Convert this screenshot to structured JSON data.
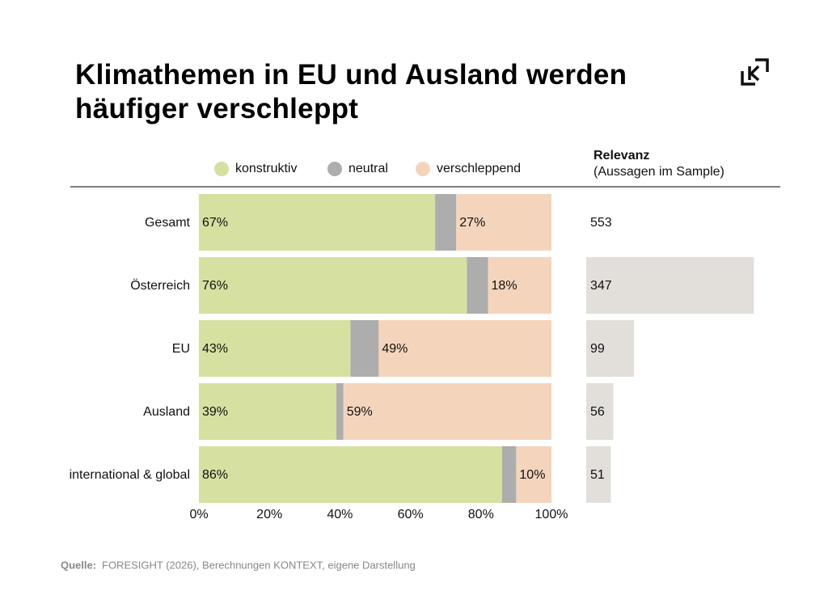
{
  "chart_data": [
    {
      "type": "stacked-bar",
      "title": "Klimathemen in EU und Ausland werden häufiger verschleppt",
      "categories": [
        "Gesamt",
        "Österreich",
        "EU",
        "Ausland",
        "international & global"
      ],
      "series": [
        {
          "name": "konstruktiv",
          "color": "#d6e0a0",
          "values": [
            67,
            76,
            43,
            39,
            86
          ],
          "value_labels": [
            "67%",
            "76%",
            "43%",
            "39%",
            "86%"
          ]
        },
        {
          "name": "neutral",
          "color": "#adadad",
          "values": [
            6,
            6,
            8,
            2,
            4
          ]
        },
        {
          "name": "verschleppend",
          "color": "#f4d5bc",
          "values": [
            27,
            18,
            49,
            59,
            10
          ],
          "value_labels": [
            "27%",
            "18%",
            "49%",
            "59%",
            "10%"
          ]
        }
      ],
      "xlim": [
        0,
        100
      ],
      "xticks": [
        {
          "value": 0,
          "label": "0%"
        },
        {
          "value": 20,
          "label": "20%"
        },
        {
          "value": 40,
          "label": "40%"
        },
        {
          "value": 60,
          "label": "60%"
        },
        {
          "value": 80,
          "label": "80%"
        },
        {
          "value": 100,
          "label": "100%"
        }
      ],
      "legend": "top"
    },
    {
      "type": "bar",
      "title": "Relevanz",
      "subtitle": "(Aussagen im Sample)",
      "values": [
        553,
        347,
        99,
        56,
        51
      ],
      "show_bar": [
        false,
        true,
        true,
        true,
        true
      ],
      "color": "#e2dfda",
      "xlim": [
        0,
        400
      ]
    }
  ],
  "source": {
    "label": "Quelle:",
    "text": "FORESIGHT (2026), Berechnungen KONTEXT, eigene Darstellung"
  }
}
